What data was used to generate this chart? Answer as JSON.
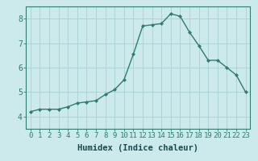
{
  "x": [
    0,
    1,
    2,
    3,
    4,
    5,
    6,
    7,
    8,
    9,
    10,
    11,
    12,
    13,
    14,
    15,
    16,
    17,
    18,
    19,
    20,
    21,
    22,
    23
  ],
  "y": [
    4.2,
    4.3,
    4.3,
    4.3,
    4.4,
    4.55,
    4.6,
    4.65,
    4.9,
    5.1,
    5.5,
    6.55,
    7.7,
    7.75,
    7.8,
    8.2,
    8.1,
    7.45,
    6.9,
    6.3,
    6.3,
    6.0,
    5.7,
    5.0
  ],
  "xlabel": "Humidex (Indice chaleur)",
  "ylim": [
    3.5,
    8.5
  ],
  "xlim": [
    -0.5,
    23.5
  ],
  "yticks": [
    4,
    5,
    6,
    7,
    8
  ],
  "xticks": [
    0,
    1,
    2,
    3,
    4,
    5,
    6,
    7,
    8,
    9,
    10,
    11,
    12,
    13,
    14,
    15,
    16,
    17,
    18,
    19,
    20,
    21,
    22,
    23
  ],
  "line_color": "#2e7d6e",
  "marker_color": "#2e7d6e",
  "bg_color": "#cce9eb",
  "grid_color": "#afd4d6",
  "axis_color": "#2e7d6e",
  "text_color": "#1a4a4d",
  "tick_font_size": 6.5,
  "label_font_size": 7.5
}
